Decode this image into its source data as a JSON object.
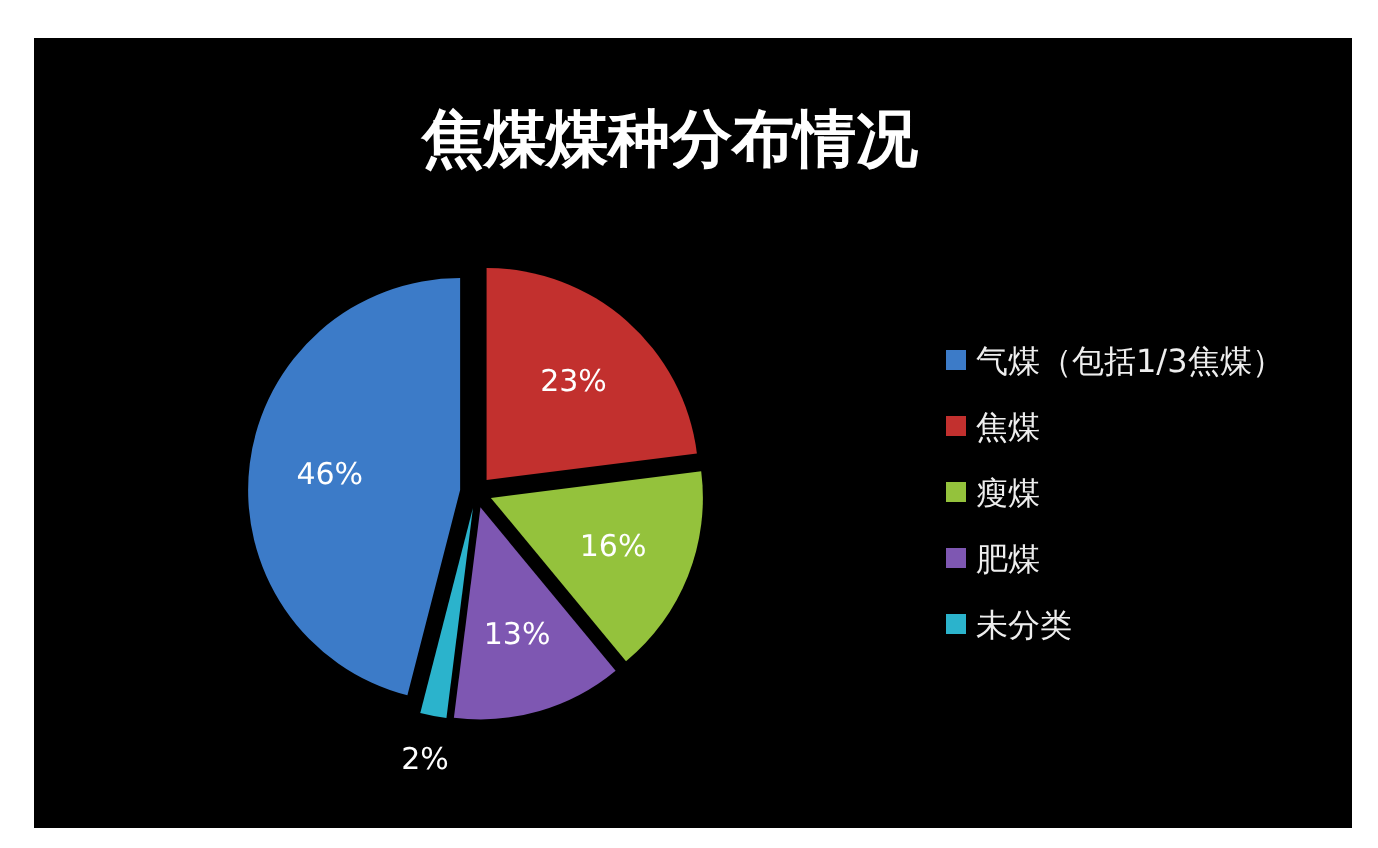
{
  "chart_data": {
    "type": "pie",
    "title": "焦煤煤种分布情况",
    "categories": [
      "气煤（包括1/3焦煤）",
      "焦煤",
      "瘦煤",
      "肥煤",
      "未分类"
    ],
    "values": [
      46,
      23,
      16,
      13,
      2
    ],
    "colors": [
      "#3c7bc8",
      "#c2302e",
      "#94c23c",
      "#7e57b2",
      "#2bb3cc"
    ],
    "value_labels": [
      "46%",
      "23%",
      "16%",
      "13%",
      "2%"
    ],
    "legend": "right"
  }
}
